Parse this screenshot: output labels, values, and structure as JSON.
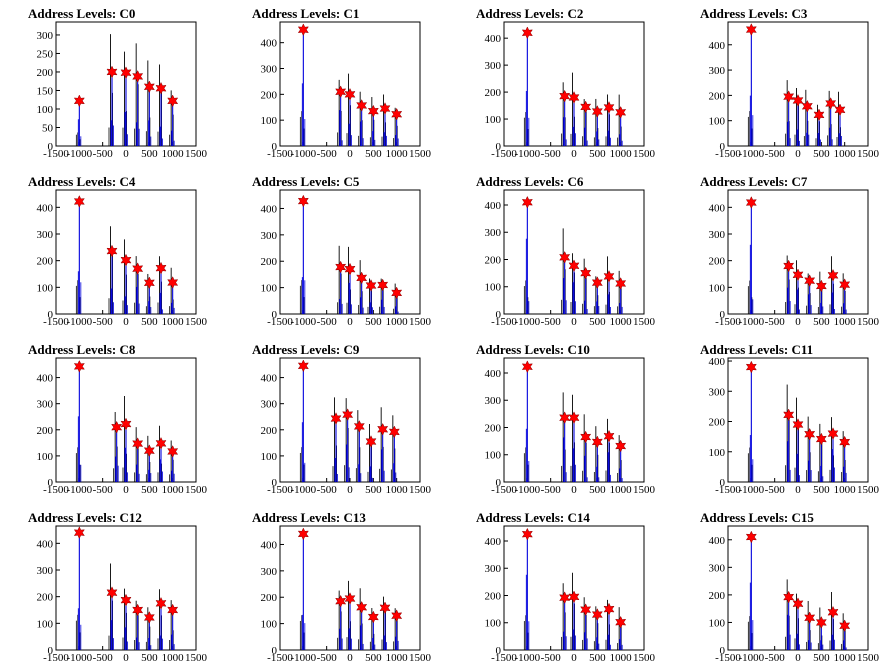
{
  "chart_data": [
    {
      "type": "bar",
      "title": "Address Levels: C0",
      "xlim": [
        -1500,
        1500
      ],
      "ylim": [
        0,
        335
      ],
      "y_ticks": [
        0,
        50,
        100,
        150,
        200,
        250,
        300
      ],
      "x_ticks": [
        -1500,
        -1000,
        -500,
        0,
        500,
        1000,
        1500
      ],
      "peaks": [
        {
          "x": -1000,
          "y": 122
        },
        {
          "x": -300,
          "y": 200
        },
        {
          "x": 0,
          "y": 198
        },
        {
          "x": 250,
          "y": 188
        },
        {
          "x": 500,
          "y": 160
        },
        {
          "x": 750,
          "y": 156
        },
        {
          "x": 1000,
          "y": 122
        }
      ]
    },
    {
      "type": "bar",
      "title": "Address Levels: C1",
      "xlim": [
        -1500,
        1500
      ],
      "ylim": [
        0,
        480
      ],
      "y_ticks": [
        0,
        100,
        200,
        300,
        400
      ],
      "x_ticks": [
        -1500,
        -1000,
        -500,
        0,
        500,
        1000,
        1500
      ],
      "peaks": [
        {
          "x": -1000,
          "y": 450
        },
        {
          "x": -200,
          "y": 210
        },
        {
          "x": 0,
          "y": 200
        },
        {
          "x": 250,
          "y": 157
        },
        {
          "x": 500,
          "y": 135
        },
        {
          "x": 750,
          "y": 145
        },
        {
          "x": 1000,
          "y": 123
        }
      ]
    },
    {
      "type": "bar",
      "title": "Address Levels: C2",
      "xlim": [
        -1500,
        1500
      ],
      "ylim": [
        0,
        460
      ],
      "y_ticks": [
        0,
        100,
        200,
        300,
        400
      ],
      "x_ticks": [
        -1500,
        -1000,
        -500,
        0,
        500,
        1000,
        1500
      ],
      "peaks": [
        {
          "x": -1000,
          "y": 420
        },
        {
          "x": -200,
          "y": 185
        },
        {
          "x": 0,
          "y": 180
        },
        {
          "x": 250,
          "y": 145
        },
        {
          "x": 500,
          "y": 128
        },
        {
          "x": 750,
          "y": 143
        },
        {
          "x": 1000,
          "y": 125
        }
      ]
    },
    {
      "type": "bar",
      "title": "Address Levels: C3",
      "xlim": [
        -1500,
        1500
      ],
      "ylim": [
        0,
        490
      ],
      "y_ticks": [
        0,
        100,
        200,
        300,
        400
      ],
      "x_ticks": [
        -1500,
        -1000,
        -500,
        0,
        500,
        1000,
        1500
      ],
      "peaks": [
        {
          "x": -1000,
          "y": 460
        },
        {
          "x": -200,
          "y": 195
        },
        {
          "x": 0,
          "y": 180
        },
        {
          "x": 200,
          "y": 157
        },
        {
          "x": 450,
          "y": 123
        },
        {
          "x": 700,
          "y": 168
        },
        {
          "x": 900,
          "y": 143
        }
      ]
    },
    {
      "type": "bar",
      "title": "Address Levels: C4",
      "xlim": [
        -1500,
        1500
      ],
      "ylim": [
        0,
        465
      ],
      "y_ticks": [
        0,
        100,
        200,
        300,
        400
      ],
      "x_ticks": [
        -1500,
        -1000,
        -500,
        0,
        500,
        1000,
        1500
      ],
      "peaks": [
        {
          "x": -1000,
          "y": 422
        },
        {
          "x": -300,
          "y": 236
        },
        {
          "x": 0,
          "y": 202
        },
        {
          "x": 250,
          "y": 170
        },
        {
          "x": 500,
          "y": 117
        },
        {
          "x": 750,
          "y": 172
        },
        {
          "x": 1000,
          "y": 118
        }
      ]
    },
    {
      "type": "bar",
      "title": "Address Levels: C5",
      "xlim": [
        -1500,
        1500
      ],
      "ylim": [
        0,
        470
      ],
      "y_ticks": [
        0,
        100,
        200,
        300,
        400
      ],
      "x_ticks": [
        -1500,
        -1000,
        -500,
        0,
        500,
        1000,
        1500
      ],
      "peaks": [
        {
          "x": -1000,
          "y": 428
        },
        {
          "x": -200,
          "y": 178
        },
        {
          "x": 0,
          "y": 170
        },
        {
          "x": 250,
          "y": 137
        },
        {
          "x": 450,
          "y": 108
        },
        {
          "x": 700,
          "y": 110
        },
        {
          "x": 1000,
          "y": 80
        }
      ]
    },
    {
      "type": "bar",
      "title": "Address Levels: C6",
      "xlim": [
        -1500,
        1500
      ],
      "ylim": [
        0,
        455
      ],
      "y_ticks": [
        0,
        100,
        200,
        300,
        400
      ],
      "x_ticks": [
        -1500,
        -1000,
        -500,
        0,
        500,
        1000,
        1500
      ],
      "peaks": [
        {
          "x": -1000,
          "y": 410
        },
        {
          "x": -200,
          "y": 208
        },
        {
          "x": 0,
          "y": 177
        },
        {
          "x": 250,
          "y": 150
        },
        {
          "x": 500,
          "y": 115
        },
        {
          "x": 750,
          "y": 138
        },
        {
          "x": 1000,
          "y": 112
        }
      ]
    },
    {
      "type": "bar",
      "title": "Address Levels: C7",
      "xlim": [
        -1500,
        1500
      ],
      "ylim": [
        0,
        465
      ],
      "y_ticks": [
        0,
        100,
        200,
        300,
        400
      ],
      "x_ticks": [
        -1500,
        -1000,
        -500,
        0,
        500,
        1000,
        1500
      ],
      "peaks": [
        {
          "x": -1000,
          "y": 418
        },
        {
          "x": -200,
          "y": 180
        },
        {
          "x": 0,
          "y": 147
        },
        {
          "x": 250,
          "y": 125
        },
        {
          "x": 500,
          "y": 105
        },
        {
          "x": 750,
          "y": 145
        },
        {
          "x": 1000,
          "y": 110
        }
      ]
    },
    {
      "type": "bar",
      "title": "Address Levels: C8",
      "xlim": [
        -1500,
        1500
      ],
      "ylim": [
        0,
        475
      ],
      "y_ticks": [
        0,
        100,
        200,
        300,
        400
      ],
      "x_ticks": [
        -1500,
        -1000,
        -500,
        0,
        500,
        1000,
        1500
      ],
      "peaks": [
        {
          "x": -1000,
          "y": 443
        },
        {
          "x": -200,
          "y": 210
        },
        {
          "x": 0,
          "y": 222
        },
        {
          "x": 250,
          "y": 147
        },
        {
          "x": 500,
          "y": 120
        },
        {
          "x": 750,
          "y": 148
        },
        {
          "x": 1000,
          "y": 117
        }
      ]
    },
    {
      "type": "bar",
      "title": "Address Levels: C9",
      "xlim": [
        -1500,
        1500
      ],
      "ylim": [
        0,
        475
      ],
      "y_ticks": [
        0,
        100,
        200,
        300,
        400
      ],
      "x_ticks": [
        -1500,
        -1000,
        -500,
        0,
        500,
        1000,
        1500
      ],
      "peaks": [
        {
          "x": -1000,
          "y": 445
        },
        {
          "x": -300,
          "y": 243
        },
        {
          "x": -50,
          "y": 258
        },
        {
          "x": 200,
          "y": 213
        },
        {
          "x": 450,
          "y": 155
        },
        {
          "x": 700,
          "y": 202
        },
        {
          "x": 950,
          "y": 192
        }
      ]
    },
    {
      "type": "bar",
      "title": "Address Levels: C10",
      "xlim": [
        -1500,
        1500
      ],
      "ylim": [
        0,
        455
      ],
      "y_ticks": [
        0,
        100,
        200,
        300,
        400
      ],
      "x_ticks": [
        -1500,
        -1000,
        -500,
        0,
        500,
        1000,
        1500
      ],
      "peaks": [
        {
          "x": -1000,
          "y": 423
        },
        {
          "x": -200,
          "y": 236
        },
        {
          "x": 0,
          "y": 236
        },
        {
          "x": 250,
          "y": 165
        },
        {
          "x": 500,
          "y": 147
        },
        {
          "x": 750,
          "y": 168
        },
        {
          "x": 1000,
          "y": 132
        }
      ]
    },
    {
      "type": "bar",
      "title": "Address Levels: C11",
      "xlim": [
        -1500,
        1500
      ],
      "ylim": [
        0,
        410
      ],
      "y_ticks": [
        0,
        100,
        200,
        300,
        400
      ],
      "x_ticks": [
        -1500,
        -1000,
        -500,
        0,
        500,
        1000,
        1500
      ],
      "peaks": [
        {
          "x": -1000,
          "y": 380
        },
        {
          "x": -200,
          "y": 222
        },
        {
          "x": 0,
          "y": 190
        },
        {
          "x": 250,
          "y": 158
        },
        {
          "x": 500,
          "y": 142
        },
        {
          "x": 750,
          "y": 160
        },
        {
          "x": 1000,
          "y": 132
        }
      ]
    },
    {
      "type": "bar",
      "title": "Address Levels: C12",
      "xlim": [
        -1500,
        1500
      ],
      "ylim": [
        0,
        465
      ],
      "y_ticks": [
        0,
        100,
        200,
        300,
        400
      ],
      "x_ticks": [
        -1500,
        -1000,
        -500,
        0,
        500,
        1000,
        1500
      ],
      "peaks": [
        {
          "x": -1000,
          "y": 440
        },
        {
          "x": -300,
          "y": 215
        },
        {
          "x": 0,
          "y": 187
        },
        {
          "x": 250,
          "y": 150
        },
        {
          "x": 500,
          "y": 122
        },
        {
          "x": 750,
          "y": 175
        },
        {
          "x": 1000,
          "y": 150
        }
      ]
    },
    {
      "type": "bar",
      "title": "Address Levels: C13",
      "xlim": [
        -1500,
        1500
      ],
      "ylim": [
        0,
        470
      ],
      "y_ticks": [
        0,
        100,
        200,
        300,
        400
      ],
      "x_ticks": [
        -1500,
        -1000,
        -500,
        0,
        500,
        1000,
        1500
      ],
      "peaks": [
        {
          "x": -1000,
          "y": 440
        },
        {
          "x": -200,
          "y": 185
        },
        {
          "x": 0,
          "y": 195
        },
        {
          "x": 250,
          "y": 162
        },
        {
          "x": 500,
          "y": 125
        },
        {
          "x": 750,
          "y": 160
        },
        {
          "x": 1000,
          "y": 130
        }
      ]
    },
    {
      "type": "bar",
      "title": "Address Levels: C14",
      "xlim": [
        -1500,
        1500
      ],
      "ylim": [
        0,
        455
      ],
      "y_ticks": [
        0,
        100,
        200,
        300,
        400
      ],
      "x_ticks": [
        -1500,
        -1000,
        -500,
        0,
        500,
        1000,
        1500
      ],
      "peaks": [
        {
          "x": -1000,
          "y": 425
        },
        {
          "x": -200,
          "y": 192
        },
        {
          "x": 0,
          "y": 195
        },
        {
          "x": 250,
          "y": 148
        },
        {
          "x": 500,
          "y": 130
        },
        {
          "x": 750,
          "y": 150
        },
        {
          "x": 1000,
          "y": 102
        }
      ]
    },
    {
      "type": "bar",
      "title": "Address Levels: C15",
      "xlim": [
        -1500,
        1500
      ],
      "ylim": [
        0,
        450
      ],
      "y_ticks": [
        0,
        100,
        200,
        300,
        400
      ],
      "x_ticks": [
        -1500,
        -1000,
        -500,
        0,
        500,
        1000,
        1500
      ],
      "peaks": [
        {
          "x": -1000,
          "y": 410
        },
        {
          "x": -200,
          "y": 192
        },
        {
          "x": 0,
          "y": 168
        },
        {
          "x": 250,
          "y": 117
        },
        {
          "x": 500,
          "y": 100
        },
        {
          "x": 750,
          "y": 137
        },
        {
          "x": 1000,
          "y": 88
        }
      ]
    }
  ],
  "colors": {
    "marker": "#ff0000",
    "bar_blue": "#0000dd",
    "bar_black": "#000000",
    "axis": "#000000"
  }
}
